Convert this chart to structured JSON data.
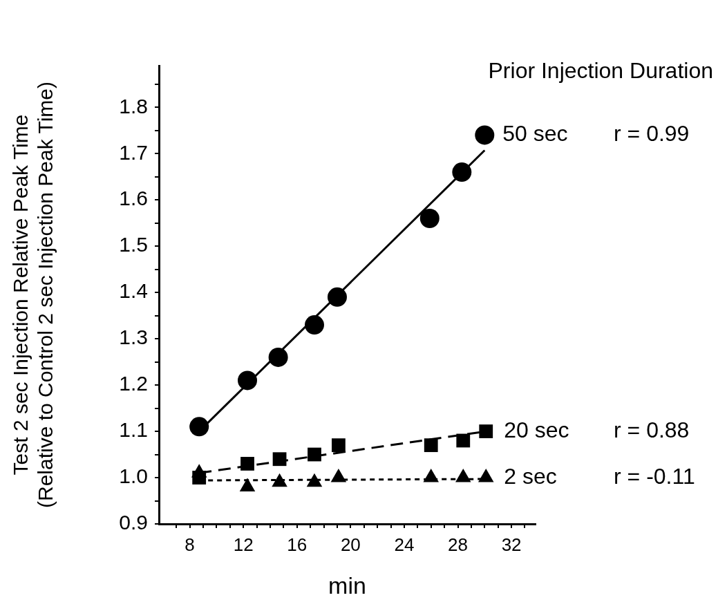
{
  "chart_data": {
    "type": "scatter",
    "xlabel": "min",
    "ylabel": "Test 2 sec Injection Relative Peak Time\n(Relative to Control 2 sec Injection Peak Time)",
    "legend_title": "Prior Injection Duration",
    "xlim": [
      5.7,
      33.8
    ],
    "ylim": [
      0.9,
      1.89
    ],
    "xticks": [
      {
        "value": 7,
        "label": null
      },
      8,
      {
        "value": 9,
        "label": null
      },
      {
        "value": 10,
        "label": null
      },
      {
        "value": 11,
        "label": null
      },
      12,
      {
        "value": 13,
        "label": null
      },
      {
        "value": 14,
        "label": null
      },
      {
        "value": 15,
        "label": null
      },
      16,
      {
        "value": 17,
        "label": null
      },
      {
        "value": 18,
        "label": null
      },
      {
        "value": 19,
        "label": null
      },
      20,
      {
        "value": 21,
        "label": null
      },
      {
        "value": 22,
        "label": null
      },
      {
        "value": 23,
        "label": null
      },
      24,
      {
        "value": 25,
        "label": null
      },
      {
        "value": 26,
        "label": null
      },
      {
        "value": 27,
        "label": null
      },
      28,
      {
        "value": 29,
        "label": null
      },
      {
        "value": 30,
        "label": null
      },
      {
        "value": 31,
        "label": null
      },
      32,
      {
        "value": 33,
        "label": null
      }
    ],
    "yticks": [
      {
        "value": 0.9,
        "label": "0.9"
      },
      {
        "value": 0.95,
        "label": null
      },
      {
        "value": 1.0,
        "label": "1.0"
      },
      {
        "value": 1.05,
        "label": null
      },
      {
        "value": 1.1,
        "label": "1.1"
      },
      {
        "value": 1.15,
        "label": null
      },
      {
        "value": 1.2,
        "label": "1.2"
      },
      {
        "value": 1.25,
        "label": null
      },
      {
        "value": 1.3,
        "label": "1.3"
      },
      {
        "value": 1.35,
        "label": null
      },
      {
        "value": 1.4,
        "label": "1.4"
      },
      {
        "value": 1.45,
        "label": null
      },
      {
        "value": 1.5,
        "label": "1.5"
      },
      {
        "value": 1.55,
        "label": null
      },
      {
        "value": 1.6,
        "label": "1.6"
      },
      {
        "value": 1.65,
        "label": null
      },
      {
        "value": 1.7,
        "label": "1.7"
      },
      {
        "value": 1.75,
        "label": null
      },
      {
        "value": 1.8,
        "label": "1.8"
      },
      {
        "value": 1.85,
        "label": null
      }
    ],
    "series": [
      {
        "type": "line",
        "color": "#000000",
        "line_style": "solid",
        "marker": "none",
        "x": [
          8.7,
          30.0
        ],
        "values": [
          1.1,
          1.707
        ]
      },
      {
        "type": "line",
        "color": "#000000",
        "line_style": "dashed",
        "marker": "none",
        "x": [
          8.7,
          30.1
        ],
        "values": [
          1.01,
          1.1
        ]
      },
      {
        "type": "line",
        "color": "#000000",
        "line_style": "dotted",
        "marker": "none",
        "x": [
          8.7,
          30.1
        ],
        "values": [
          0.994,
          0.997
        ]
      },
      {
        "name": "50 sec",
        "type": "scatter",
        "color": "#000000",
        "marker": "circle",
        "x": [
          8.7,
          12.3,
          14.6,
          17.3,
          19.0,
          25.9,
          28.3,
          30.0
        ],
        "values": [
          1.11,
          1.21,
          1.26,
          1.33,
          1.39,
          1.56,
          1.66,
          1.74
        ]
      },
      {
        "name": "20 sec",
        "type": "scatter",
        "color": "#000000",
        "marker": "square",
        "x": [
          8.7,
          12.3,
          14.7,
          17.3,
          19.1,
          26.0,
          28.4,
          30.1
        ],
        "values": [
          1.0,
          1.03,
          1.04,
          1.05,
          1.07,
          1.07,
          1.08,
          1.1
        ]
      },
      {
        "name": "2 sec",
        "type": "scatter",
        "color": "#000000",
        "marker": "triangle",
        "x": [
          8.7,
          12.3,
          14.7,
          17.3,
          19.1,
          26.0,
          28.4,
          30.1
        ],
        "values": [
          1.01,
          0.98,
          0.99,
          0.99,
          1.0,
          1.0,
          1.0,
          1.0
        ]
      }
    ],
    "annotations": [
      "r = 0.99",
      "r = 0.88",
      "r = -0.11"
    ]
  }
}
